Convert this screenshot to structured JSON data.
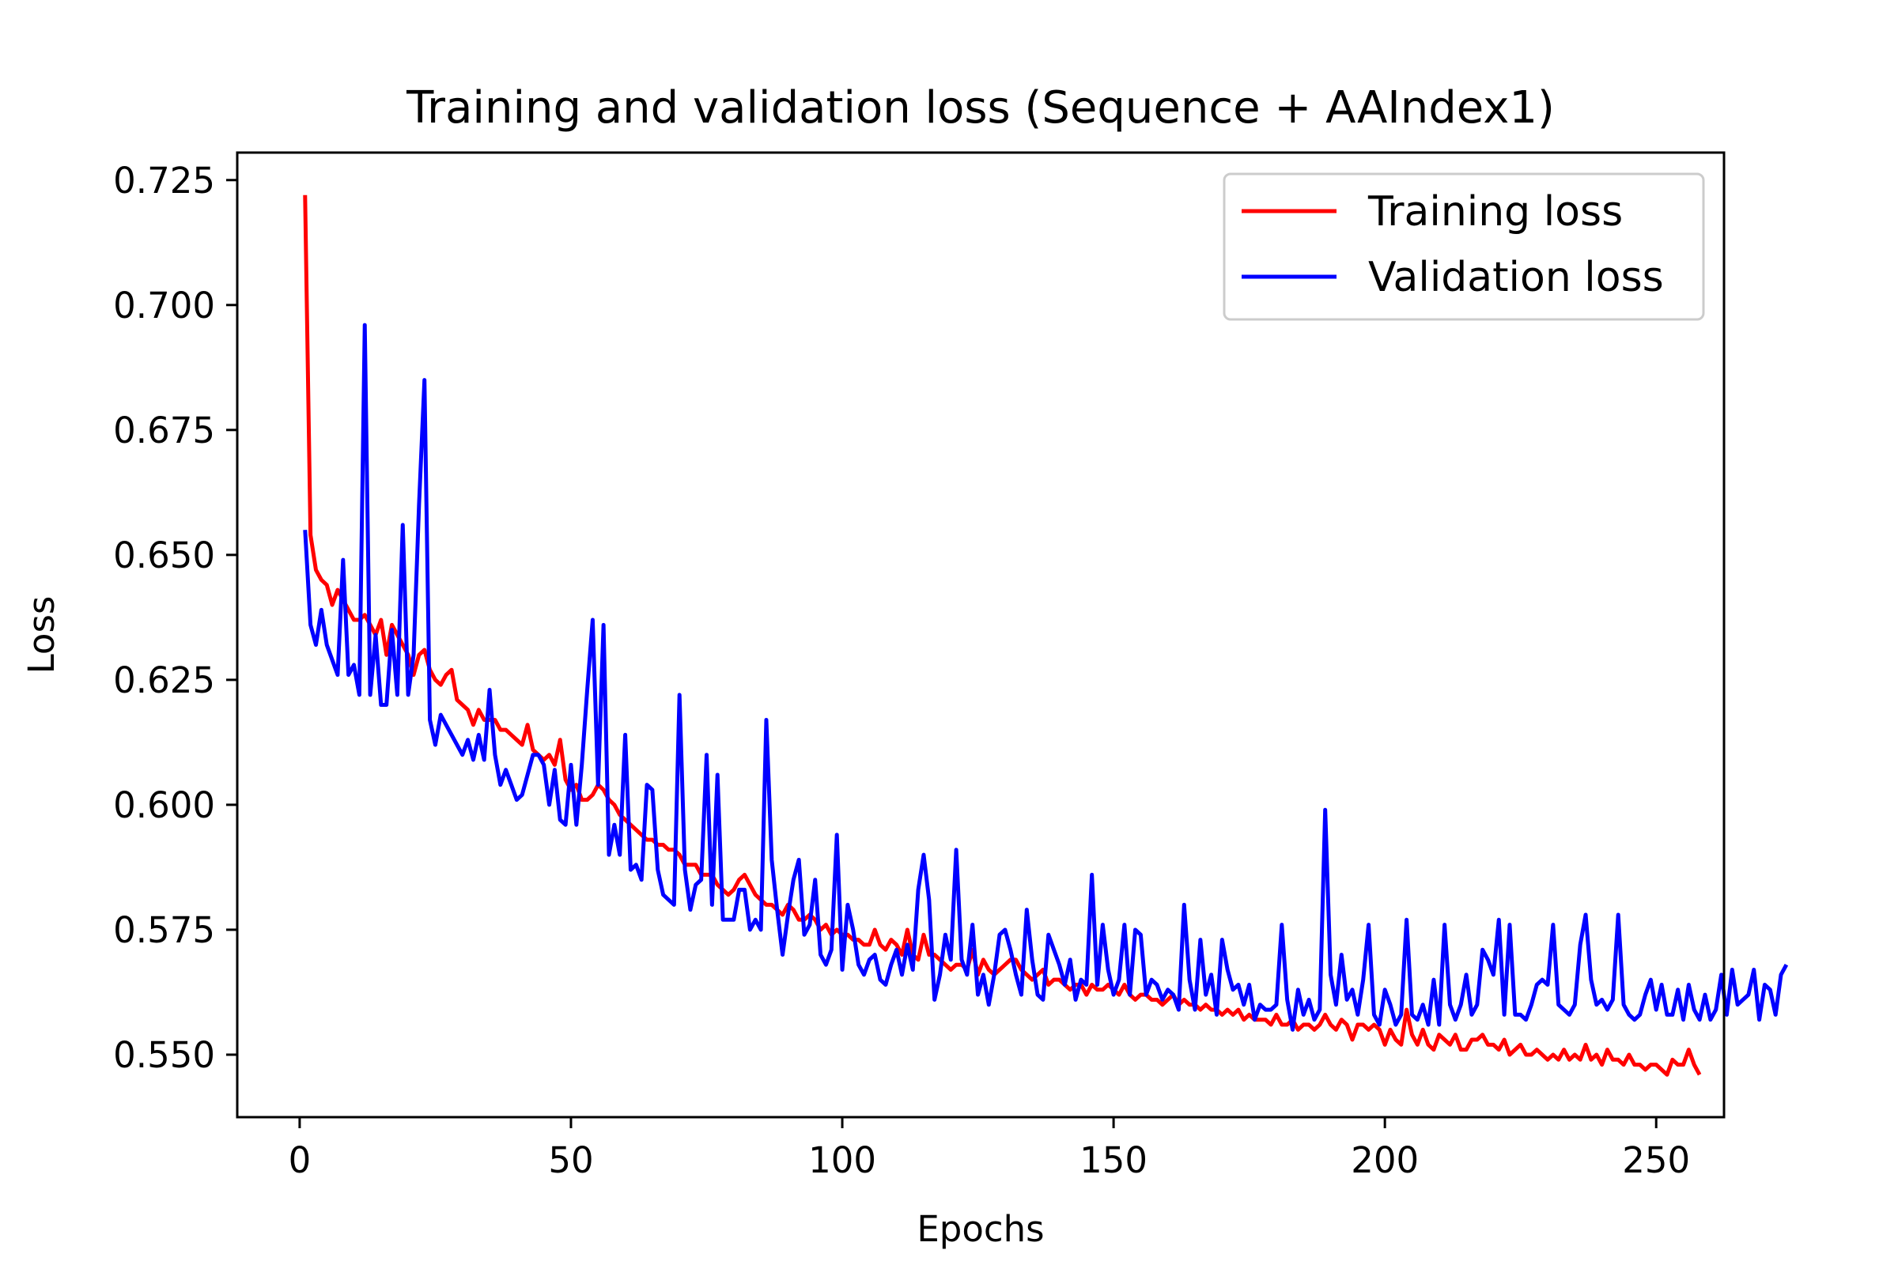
{
  "chart_data": {
    "type": "line",
    "title": "Training and validation loss (Sequence + AAIndex1)",
    "xlabel": "Epochs",
    "ylabel": "Loss",
    "xlim": [
      -11.5,
      262.5
    ],
    "ylim": [
      0.5375,
      0.7305
    ],
    "xticks": [
      0,
      50,
      100,
      150,
      200,
      250
    ],
    "xtick_labels": [
      "0",
      "50",
      "100",
      "150",
      "200",
      "250"
    ],
    "yticks": [
      0.55,
      0.575,
      0.6,
      0.625,
      0.65,
      0.675,
      0.7,
      0.725
    ],
    "ytick_labels": [
      "0.550",
      "0.575",
      "0.600",
      "0.625",
      "0.650",
      "0.675",
      "0.700",
      "0.725"
    ],
    "grid": false,
    "legend_position": "top-right",
    "series": [
      {
        "name": "Training loss",
        "color": "#ff0000",
        "x_start": 1,
        "values": [
          0.722,
          0.654,
          0.647,
          0.645,
          0.644,
          0.64,
          0.643,
          0.641,
          0.639,
          0.637,
          0.637,
          0.638,
          0.636,
          0.634,
          0.637,
          0.63,
          0.636,
          0.634,
          0.632,
          0.63,
          0.626,
          0.63,
          0.631,
          0.627,
          0.625,
          0.624,
          0.626,
          0.627,
          0.621,
          0.62,
          0.619,
          0.616,
          0.619,
          0.617,
          0.617,
          0.617,
          0.615,
          0.615,
          0.614,
          0.613,
          0.612,
          0.616,
          0.611,
          0.61,
          0.609,
          0.61,
          0.608,
          0.613,
          0.605,
          0.603,
          0.604,
          0.601,
          0.601,
          0.602,
          0.604,
          0.603,
          0.601,
          0.6,
          0.598,
          0.597,
          0.596,
          0.595,
          0.594,
          0.593,
          0.593,
          0.592,
          0.592,
          0.591,
          0.591,
          0.59,
          0.588,
          0.588,
          0.588,
          0.586,
          0.586,
          0.586,
          0.584,
          0.583,
          0.582,
          0.583,
          0.585,
          0.586,
          0.584,
          0.582,
          0.581,
          0.58,
          0.58,
          0.579,
          0.578,
          0.58,
          0.579,
          0.577,
          0.577,
          0.578,
          0.577,
          0.575,
          0.576,
          0.574,
          0.575,
          0.574,
          0.574,
          0.573,
          0.573,
          0.572,
          0.572,
          0.575,
          0.572,
          0.571,
          0.573,
          0.572,
          0.57,
          0.575,
          0.57,
          0.569,
          0.574,
          0.57,
          0.57,
          0.569,
          0.568,
          0.567,
          0.568,
          0.568,
          0.567,
          0.571,
          0.566,
          0.569,
          0.567,
          0.566,
          0.567,
          0.568,
          0.569,
          0.569,
          0.567,
          0.566,
          0.565,
          0.566,
          0.567,
          0.564,
          0.565,
          0.565,
          0.564,
          0.563,
          0.564,
          0.564,
          0.562,
          0.564,
          0.563,
          0.563,
          0.564,
          0.563,
          0.562,
          0.564,
          0.562,
          0.561,
          0.562,
          0.562,
          0.561,
          0.561,
          0.56,
          0.561,
          0.562,
          0.56,
          0.561,
          0.56,
          0.56,
          0.559,
          0.56,
          0.559,
          0.559,
          0.558,
          0.559,
          0.558,
          0.559,
          0.557,
          0.558,
          0.557,
          0.557,
          0.557,
          0.556,
          0.558,
          0.556,
          0.556,
          0.557,
          0.555,
          0.556,
          0.556,
          0.555,
          0.556,
          0.558,
          0.556,
          0.555,
          0.557,
          0.556,
          0.553,
          0.556,
          0.556,
          0.555,
          0.556,
          0.555,
          0.552,
          0.555,
          0.553,
          0.552,
          0.559,
          0.554,
          0.552,
          0.555,
          0.552,
          0.551,
          0.554,
          0.553,
          0.552,
          0.554,
          0.551,
          0.551,
          0.553,
          0.553,
          0.554,
          0.552,
          0.552,
          0.551,
          0.553,
          0.55,
          0.551,
          0.552,
          0.55,
          0.55,
          0.551,
          0.55,
          0.549,
          0.55,
          0.549,
          0.551,
          0.549,
          0.55,
          0.549,
          0.552,
          0.549,
          0.55,
          0.548,
          0.551,
          0.549,
          0.549,
          0.548,
          0.55,
          0.548,
          0.548,
          0.547,
          0.548,
          0.548,
          0.547,
          0.546,
          0.549,
          0.548,
          0.548,
          0.551,
          0.548,
          0.546
        ]
      },
      {
        "name": "Validation loss",
        "color": "#0000ff",
        "x_start": 1,
        "values": [
          0.655,
          0.636,
          0.632,
          0.639,
          0.632,
          0.629,
          0.626,
          0.649,
          0.626,
          0.628,
          0.622,
          0.696,
          0.622,
          0.634,
          0.62,
          0.62,
          0.635,
          0.622,
          0.656,
          0.622,
          0.63,
          0.66,
          0.685,
          0.617,
          0.612,
          0.618,
          0.616,
          0.614,
          0.612,
          0.61,
          0.613,
          0.609,
          0.614,
          0.609,
          0.623,
          0.61,
          0.604,
          0.607,
          0.604,
          0.601,
          0.602,
          0.606,
          0.61,
          0.61,
          0.608,
          0.6,
          0.607,
          0.597,
          0.596,
          0.608,
          0.596,
          0.608,
          0.623,
          0.637,
          0.604,
          0.636,
          0.59,
          0.596,
          0.59,
          0.614,
          0.587,
          0.588,
          0.585,
          0.604,
          0.603,
          0.587,
          0.582,
          0.581,
          0.58,
          0.622,
          0.587,
          0.579,
          0.584,
          0.585,
          0.61,
          0.58,
          0.606,
          0.577,
          0.577,
          0.577,
          0.583,
          0.583,
          0.575,
          0.577,
          0.575,
          0.617,
          0.589,
          0.579,
          0.57,
          0.578,
          0.585,
          0.589,
          0.574,
          0.576,
          0.585,
          0.57,
          0.568,
          0.571,
          0.594,
          0.567,
          0.58,
          0.575,
          0.568,
          0.566,
          0.569,
          0.57,
          0.565,
          0.564,
          0.568,
          0.571,
          0.566,
          0.572,
          0.567,
          0.583,
          0.59,
          0.581,
          0.561,
          0.566,
          0.574,
          0.569,
          0.591,
          0.569,
          0.566,
          0.576,
          0.562,
          0.566,
          0.56,
          0.566,
          0.574,
          0.575,
          0.571,
          0.566,
          0.562,
          0.579,
          0.569,
          0.562,
          0.561,
          0.574,
          0.571,
          0.568,
          0.564,
          0.569,
          0.561,
          0.565,
          0.564,
          0.586,
          0.564,
          0.576,
          0.567,
          0.562,
          0.565,
          0.576,
          0.562,
          0.575,
          0.574,
          0.562,
          0.565,
          0.564,
          0.561,
          0.563,
          0.562,
          0.559,
          0.58,
          0.565,
          0.559,
          0.573,
          0.562,
          0.566,
          0.558,
          0.573,
          0.567,
          0.563,
          0.564,
          0.56,
          0.564,
          0.557,
          0.56,
          0.559,
          0.559,
          0.56,
          0.576,
          0.561,
          0.555,
          0.563,
          0.558,
          0.561,
          0.557,
          0.559,
          0.599,
          0.566,
          0.56,
          0.57,
          0.561,
          0.563,
          0.558,
          0.565,
          0.576,
          0.558,
          0.556,
          0.563,
          0.56,
          0.556,
          0.558,
          0.577,
          0.558,
          0.557,
          0.56,
          0.556,
          0.565,
          0.556,
          0.576,
          0.56,
          0.557,
          0.56,
          0.566,
          0.558,
          0.56,
          0.571,
          0.569,
          0.566,
          0.577,
          0.558,
          0.576,
          0.558,
          0.558,
          0.557,
          0.56,
          0.564,
          0.565,
          0.564,
          0.576,
          0.56,
          0.559,
          0.558,
          0.56,
          0.572,
          0.578,
          0.565,
          0.56,
          0.561,
          0.559,
          0.561,
          0.578,
          0.56,
          0.558,
          0.557,
          0.558,
          0.562,
          0.565,
          0.559,
          0.564,
          0.558,
          0.558,
          0.563,
          0.557,
          0.564,
          0.559,
          0.557,
          0.562,
          0.557,
          0.559,
          0.566,
          0.558,
          0.567,
          0.56,
          0.561,
          0.562,
          0.567,
          0.557,
          0.564,
          0.563,
          0.558,
          0.566,
          0.568
        ]
      }
    ]
  }
}
